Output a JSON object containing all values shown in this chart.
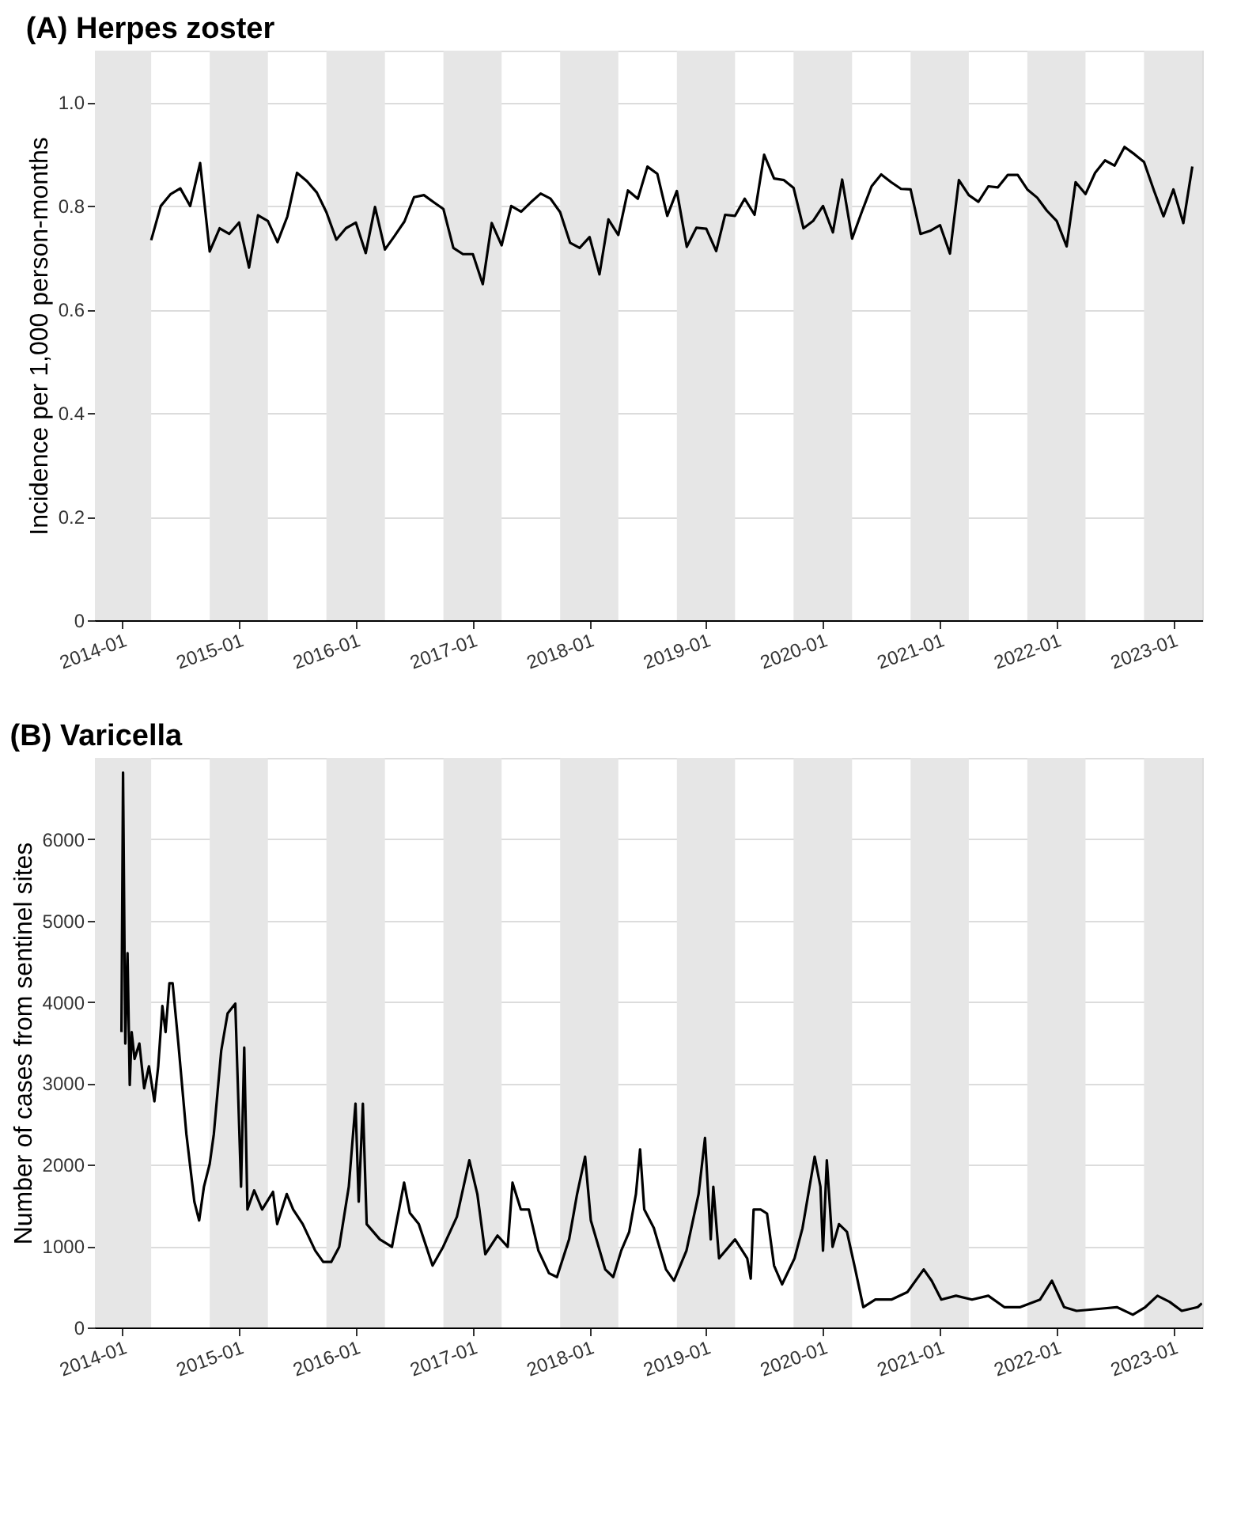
{
  "chart_data": [
    {
      "type": "line",
      "title": "(A) Herpes zoster",
      "ylabel": "Incidence per 1,000 person-months",
      "xlim": [
        "2013-10-07",
        "2023-04-01"
      ],
      "ylim": [
        0,
        1.1
      ],
      "xticks": [
        "2014-01",
        "2015-01",
        "2016-01",
        "2017-01",
        "2018-01",
        "2019-01",
        "2020-01",
        "2021-01",
        "2022-01",
        "2023-01"
      ],
      "yticks": [
        0,
        0.2,
        0.4,
        0.6,
        0.8,
        {
          "value": 1,
          "label": "1.0"
        }
      ],
      "grid": "y",
      "bands": [
        {
          "axis": "x",
          "from": "2013-10-07",
          "to": "2014-04-01",
          "color": "#e6e6e6"
        },
        {
          "axis": "x",
          "from": "2014-10-01",
          "to": "2015-04-01",
          "color": "#e6e6e6"
        },
        {
          "axis": "x",
          "from": "2015-10-01",
          "to": "2016-04-01",
          "color": "#e6e6e6"
        },
        {
          "axis": "x",
          "from": "2016-10-01",
          "to": "2017-04-01",
          "color": "#e6e6e6"
        },
        {
          "axis": "x",
          "from": "2017-10-01",
          "to": "2018-04-01",
          "color": "#e6e6e6"
        },
        {
          "axis": "x",
          "from": "2018-10-01",
          "to": "2019-04-01",
          "color": "#e6e6e6"
        },
        {
          "axis": "x",
          "from": "2019-10-01",
          "to": "2020-04-01",
          "color": "#e6e6e6"
        },
        {
          "axis": "x",
          "from": "2020-10-01",
          "to": "2021-04-01",
          "color": "#e6e6e6"
        },
        {
          "axis": "x",
          "from": "2021-10-01",
          "to": "2022-04-01",
          "color": "#e6e6e6"
        },
        {
          "axis": "x",
          "from": "2022-10-01",
          "to": "2023-04-01",
          "color": "#e6e6e6"
        }
      ],
      "series": [
        {
          "color": "#000000",
          "line_style": "solid",
          "x": [
            "2014-04",
            "2014-05",
            "2014-06",
            "2014-07",
            "2014-08",
            "2014-09",
            "2014-10",
            "2014-11",
            "2014-12",
            "2015-01",
            "2015-02",
            "2015-03",
            "2015-04",
            "2015-05",
            "2015-06",
            "2015-07",
            "2015-08",
            "2015-09",
            "2015-10",
            "2015-11",
            "2015-12",
            "2016-01",
            "2016-02",
            "2016-03",
            "2016-04",
            "2016-05",
            "2016-06",
            "2016-07",
            "2016-08",
            "2016-09",
            "2016-10",
            "2016-11",
            "2016-12",
            "2017-01",
            "2017-02",
            "2017-03",
            "2017-04",
            "2017-05",
            "2017-06",
            "2017-07",
            "2017-08",
            "2017-09",
            "2017-10",
            "2017-11",
            "2017-12",
            "2018-01",
            "2018-02",
            "2018-03",
            "2018-04",
            "2018-05",
            "2018-06",
            "2018-07",
            "2018-08",
            "2018-09",
            "2018-10",
            "2018-11",
            "2018-12",
            "2019-01",
            "2019-02",
            "2019-03",
            "2019-04",
            "2019-05",
            "2019-06",
            "2019-07",
            "2019-08",
            "2019-09",
            "2019-10",
            "2019-11",
            "2019-12",
            "2020-01",
            "2020-02",
            "2020-03",
            "2020-04",
            "2020-05",
            "2020-06",
            "2020-07",
            "2020-08",
            "2020-09",
            "2020-10",
            "2020-11",
            "2020-12",
            "2021-01",
            "2021-02",
            "2021-03",
            "2021-04",
            "2021-05",
            "2021-06",
            "2021-07",
            "2021-08",
            "2021-09",
            "2021-10",
            "2021-11",
            "2021-12",
            "2022-01",
            "2022-02",
            "2022-03",
            "2022-04",
            "2022-05",
            "2022-06",
            "2022-07",
            "2022-08",
            "2022-09",
            "2022-10",
            "2022-11",
            "2022-12",
            "2023-01",
            "2023-02",
            "2023-03"
          ],
          "values": [
            0.734,
            0.8,
            0.823,
            0.834,
            0.8,
            0.883,
            0.712,
            0.757,
            0.746,
            0.768,
            0.681,
            0.782,
            0.771,
            0.73,
            0.78,
            0.864,
            0.848,
            0.826,
            0.788,
            0.735,
            0.757,
            0.768,
            0.709,
            0.798,
            0.716,
            0.742,
            0.77,
            0.817,
            0.821,
            0.807,
            0.794,
            0.719,
            0.707,
            0.707,
            0.649,
            0.767,
            0.724,
            0.8,
            0.789,
            0.807,
            0.824,
            0.814,
            0.788,
            0.729,
            0.719,
            0.74,
            0.668,
            0.774,
            0.744,
            0.83,
            0.814,
            0.876,
            0.862,
            0.781,
            0.829,
            0.721,
            0.758,
            0.756,
            0.713,
            0.783,
            0.781,
            0.814,
            0.783,
            0.899,
            0.853,
            0.85,
            0.835,
            0.757,
            0.771,
            0.8,
            0.749,
            0.851,
            0.737,
            0.788,
            0.838,
            0.861,
            0.846,
            0.833,
            0.832,
            0.746,
            0.752,
            0.763,
            0.708,
            0.85,
            0.821,
            0.808,
            0.838,
            0.836,
            0.86,
            0.86,
            0.832,
            0.816,
            0.791,
            0.771,
            0.722,
            0.846,
            0.823,
            0.864,
            0.888,
            0.878,
            0.914,
            0.9,
            0.885,
            0.83,
            0.78,
            0.832,
            0.767,
            0.876
          ]
        }
      ]
    },
    {
      "type": "line",
      "title": "(B) Varicella",
      "ylabel": "Number of cases from sentinel sites",
      "xlim": [
        "2013-10-07",
        "2023-04-01"
      ],
      "ylim": [
        0,
        7000
      ],
      "xticks": [
        "2014-01",
        "2015-01",
        "2016-01",
        "2017-01",
        "2018-01",
        "2019-01",
        "2020-01",
        "2021-01",
        "2022-01",
        "2023-01"
      ],
      "yticks": [
        0,
        1000,
        2000,
        3000,
        4000,
        5000,
        6000
      ],
      "grid": "y",
      "bands": [
        {
          "axis": "x",
          "from": "2013-10-07",
          "to": "2014-04-01",
          "color": "#e6e6e6"
        },
        {
          "axis": "x",
          "from": "2014-10-01",
          "to": "2015-04-01",
          "color": "#e6e6e6"
        },
        {
          "axis": "x",
          "from": "2015-10-01",
          "to": "2016-04-01",
          "color": "#e6e6e6"
        },
        {
          "axis": "x",
          "from": "2016-10-01",
          "to": "2017-04-01",
          "color": "#e6e6e6"
        },
        {
          "axis": "x",
          "from": "2017-10-01",
          "to": "2018-04-01",
          "color": "#e6e6e6"
        },
        {
          "axis": "x",
          "from": "2018-10-01",
          "to": "2019-04-01",
          "color": "#e6e6e6"
        },
        {
          "axis": "x",
          "from": "2019-10-01",
          "to": "2020-04-01",
          "color": "#e6e6e6"
        },
        {
          "axis": "x",
          "from": "2020-10-01",
          "to": "2021-04-01",
          "color": "#e6e6e6"
        },
        {
          "axis": "x",
          "from": "2021-10-01",
          "to": "2022-04-01",
          "color": "#e6e6e6"
        },
        {
          "axis": "x",
          "from": "2022-10-01",
          "to": "2023-04-01",
          "color": "#e6e6e6"
        }
      ],
      "series": [
        {
          "color": "#000000",
          "line_style": "solid",
          "x": [
            "2013-12-29",
            "2014-01-03",
            "2014-01-10",
            "2014-01-17",
            "2014-01-24",
            "2014-01-30",
            "2014-02-08",
            "2014-02-23",
            "2014-03-10",
            "2014-03-25",
            "2014-04-11",
            "2014-04-23",
            "2014-05-06",
            "2014-05-16",
            "2014-05-28",
            "2014-06-07",
            "2014-06-25",
            "2014-07-20",
            "2014-08-14",
            "2014-08-29",
            "2014-09-13",
            "2014-10-01",
            "2014-10-14",
            "2014-11-06",
            "2014-11-26",
            "2014-12-20",
            "2015-01-07",
            "2015-01-17",
            "2015-01-27",
            "2015-02-17",
            "2015-03-14",
            "2015-04-17",
            "2015-04-30",
            "2015-05-30",
            "2015-06-19",
            "2015-07-19",
            "2015-08-27",
            "2015-09-21",
            "2015-10-16",
            "2015-11-10",
            "2015-12-10",
            "2015-12-31",
            "2016-01-10",
            "2016-01-23",
            "2016-02-04",
            "2016-03-16",
            "2016-04-23",
            "2016-05-31",
            "2016-06-18",
            "2016-07-16",
            "2016-08-28",
            "2016-09-30",
            "2016-11-12",
            "2016-12-21",
            "2017-01-15",
            "2017-02-09",
            "2017-03-19",
            "2017-04-20",
            "2017-05-05",
            "2017-05-31",
            "2017-06-25",
            "2017-07-25",
            "2017-08-27",
            "2017-09-21",
            "2017-10-29",
            "2017-11-23",
            "2017-12-18",
            "2018-01-05",
            "2018-02-19",
            "2018-03-16",
            "2018-04-10",
            "2018-05-05",
            "2018-05-26",
            "2018-06-08",
            "2018-06-21",
            "2018-07-21",
            "2018-08-28",
            "2018-09-22",
            "2018-10-31",
            "2018-12-08",
            "2018-12-28",
            "2019-01-15",
            "2019-01-23",
            "2019-02-10",
            "2019-04-01",
            "2019-05-09",
            "2019-05-20",
            "2019-05-29",
            "2019-06-20",
            "2019-07-10",
            "2019-08-01",
            "2019-08-26",
            "2019-10-04",
            "2019-10-29",
            "2019-12-06",
            "2019-12-24",
            "2020-01-01",
            "2020-01-13",
            "2020-01-31",
            "2020-02-20",
            "2020-03-16",
            "2020-04-11",
            "2020-05-06",
            "2020-06-13",
            "2020-08-02",
            "2020-09-21",
            "2020-11-11",
            "2020-12-06",
            "2021-01-05",
            "2021-02-20",
            "2021-04-11",
            "2021-06-01",
            "2021-07-21",
            "2021-09-09",
            "2021-11-10",
            "2021-12-17",
            "2022-01-24",
            "2022-03-04",
            "2022-05-19",
            "2022-07-08",
            "2022-08-27",
            "2022-10-05",
            "2022-11-12",
            "2022-12-20",
            "2023-01-27",
            "2023-03-18",
            "2023-03-31"
          ],
          "values": [
            3630,
            6820,
            3490,
            4600,
            2980,
            3630,
            3300,
            3490,
            2940,
            3210,
            2780,
            3210,
            3950,
            3630,
            4230,
            4230,
            3490,
            2380,
            1546,
            1315,
            1730,
            2010,
            2380,
            3400,
            3860,
            3980,
            1730,
            3440,
            1450,
            1685,
            1450,
            1667,
            1270,
            1640,
            1450,
            1270,
            944,
            805,
            805,
            990,
            1730,
            2750,
            1546,
            2750,
            1270,
            1083,
            990,
            1780,
            1407,
            1270,
            760,
            990,
            1360,
            2055,
            1640,
            900,
            1130,
            990,
            1780,
            1450,
            1450,
            944,
            667,
            620,
            1083,
            1640,
            2100,
            1315,
            713,
            620,
            944,
            1176,
            1640,
            2190,
            1450,
            1222,
            713,
            575,
            944,
            1640,
            2330,
            1083,
            1730,
            850,
            1083,
            850,
            600,
            1450,
            1450,
            1400,
            760,
            530,
            850,
            1222,
            2100,
            1730,
            944,
            2055,
            990,
            1270,
            1176,
            713,
            250,
            343,
            343,
            435,
            713,
            574,
            343,
            390,
            343,
            390,
            250,
            250,
            343,
            574,
            250,
            204,
            231,
            250,
            157,
            250,
            390,
            315,
            204,
            250,
            296
          ]
        }
      ]
    }
  ]
}
